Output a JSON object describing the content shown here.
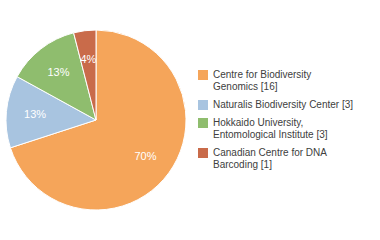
{
  "chart_data": {
    "type": "pie",
    "categories": [
      "Centre for Biodiversity\nGenomics [16]",
      "Naturalis Biodiversity Center [3]",
      "Hokkaido University,\nEntomological Institute [3]",
      "Canadian Centre for DNA\nBarcoding [1]"
    ],
    "values": [
      70,
      13,
      13,
      4
    ],
    "value_labels": [
      "70%",
      "13%",
      "13%",
      "4%"
    ],
    "colors": [
      "#F5A55A",
      "#A8C4E0",
      "#8FBD6E",
      "#C96B4A"
    ],
    "data_labels": true,
    "legend": "right"
  }
}
